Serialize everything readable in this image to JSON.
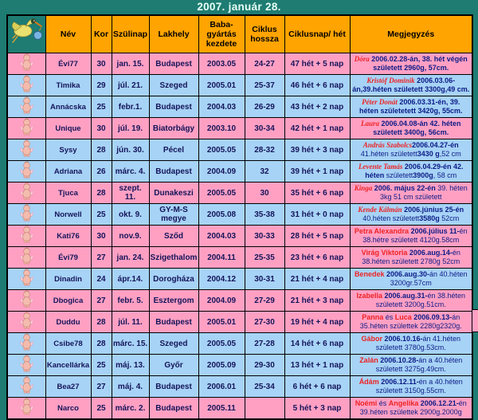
{
  "title": "2007. január 28.",
  "colors": {
    "teal": "#1E7C72",
    "header_orange": "#FFA400",
    "girl_pink": "#FFA0C3",
    "boy_blue": "#A7D3F6",
    "name_red": "#EE2222",
    "note_navy": "#0B1B86",
    "cell_text": "#14145A",
    "title_text": "#E8FFF6"
  },
  "icons": {
    "stork": "stork-with-bundle-icon",
    "cherub": "cherub-baby-icon"
  },
  "table": {
    "columns": [
      "Név",
      "Kor",
      "Szülinap",
      "Lakhely",
      "Baba-gyártás kezdete",
      "Ciklus hossza",
      "Ciklusnap/ hét",
      "Megjegyzés"
    ],
    "rows": [
      {
        "gender": "girl",
        "nev": "Évi77",
        "kor": "30",
        "szulinap": "jan. 15.",
        "lakhely": "Budapest",
        "baba": "2003.05",
        "ciklus": "24-27",
        "ciklusnap": "47 hét + 5 nap",
        "megjegyzes": [
          {
            "t": "Dóra",
            "s": "ni"
          },
          {
            "t": " 2006.02.28-án, 38. hét végén született 2960g, 57cm.",
            "s": "d"
          }
        ]
      },
      {
        "gender": "boy",
        "nev": "Timika",
        "kor": "29",
        "szulinap": "júl. 21.",
        "lakhely": "Szeged",
        "baba": "2005.01",
        "ciklus": "25-37",
        "ciklusnap": "46 hét + 6 nap",
        "megjegyzes": [
          {
            "t": "Kristóf Dominik",
            "s": "ni"
          },
          {
            "t": " 2006.03.06-án,39.héten született 3300g,49 cm.",
            "s": "d"
          }
        ]
      },
      {
        "gender": "boy",
        "nev": "Annácska",
        "kor": "25",
        "szulinap": "febr.1.",
        "lakhely": "Budapest",
        "baba": "2004.03",
        "ciklus": "26-29",
        "ciklusnap": "43 hét + 2 nap",
        "megjegyzes": [
          {
            "t": "Péter Donát",
            "s": "ni"
          },
          {
            "t": " 2006.03.31-én, 39. héten születetett 3420g, 55cm.",
            "s": "d"
          }
        ]
      },
      {
        "gender": "girl",
        "nev": "Unique",
        "kor": "30",
        "szulinap": "júl. 19.",
        "lakhely": "Biatorbágy",
        "baba": "2003.10",
        "ciklus": "30-34",
        "ciklusnap": "42 hét + 1 nap",
        "megjegyzes": [
          {
            "t": "Laura",
            "s": "ni"
          },
          {
            "t": " 2006.04.08-án 42. héten született 3400g, 56cm.",
            "s": "d"
          }
        ]
      },
      {
        "gender": "boy",
        "nev": "Sysy",
        "kor": "28",
        "szulinap": "jún. 30.",
        "lakhely": "Pécel",
        "baba": "2005.05",
        "ciklus": "28-32",
        "ciklusnap": "39 hét + 3 nap",
        "megjegyzes": [
          {
            "t": "András Szabolcs",
            "s": "ni"
          },
          {
            "t": "2006.04.27-én",
            "s": "d"
          },
          {
            "t": " 41.héten született",
            "s": "p"
          },
          {
            "t": "3430 g",
            "s": "d"
          },
          {
            "t": ",52 cm",
            "s": "p"
          }
        ]
      },
      {
        "gender": "boy",
        "nev": "Adriana",
        "kor": "26",
        "szulinap": "márc. 4.",
        "lakhely": "Budapest",
        "baba": "2004.09",
        "ciklus": "32",
        "ciklusnap": "39 hét + 1 nap",
        "megjegyzes": [
          {
            "t": "Levente Tamás",
            "s": "ni"
          },
          {
            "t": " 2006.04.29-én 42. héten",
            "s": "d"
          },
          {
            "t": " született",
            "s": "p"
          },
          {
            "t": "3900g",
            "s": "d"
          },
          {
            "t": ", 58 cm",
            "s": "p"
          }
        ]
      },
      {
        "gender": "girl",
        "nev": "Tjuca",
        "kor": "28",
        "szulinap": "szept. 11.",
        "lakhely": "Dunakeszi",
        "baba": "2005.05",
        "ciklus": "30",
        "ciklusnap": "35 hét + 6 nap",
        "megjegyzes": [
          {
            "t": "Kinga",
            "s": "ni"
          },
          {
            "t": " 2006. május 22-én",
            "s": "d"
          },
          {
            "t": " 39. héten 3kg 51 cm született",
            "s": "p"
          }
        ]
      },
      {
        "gender": "boy",
        "nev": "Norwell",
        "kor": "25",
        "szulinap": "okt. 9.",
        "lakhely": "GY-M-S megye",
        "baba": "2005.08",
        "ciklus": "35-38",
        "ciklusnap": "31 hét + 0 nap",
        "megjegyzes": [
          {
            "t": "Kende Kálmán",
            "s": "ni"
          },
          {
            "t": " 2006.június 25-én",
            "s": "d"
          },
          {
            "t": " 40.héten született",
            "s": "p"
          },
          {
            "t": "3580g",
            "s": "d"
          },
          {
            "t": " 52cm",
            "s": "p"
          }
        ]
      },
      {
        "gender": "girl",
        "nev": "Kati76",
        "kor": "30",
        "szulinap": "nov.9.",
        "lakhely": "Sződ",
        "baba": "2004.03",
        "ciklus": "30-33",
        "ciklusnap": "28 hét + 5 nap",
        "megjegyzes": [
          {
            "t": "Petra Alexandra",
            "s": "n"
          },
          {
            "t": " 2006.július 11-",
            "s": "d"
          },
          {
            "t": "én 38.hétre született 4120g.58cm",
            "s": "p"
          }
        ]
      },
      {
        "gender": "girl",
        "nev": "Évi79",
        "kor": "27",
        "szulinap": "jan. 24.",
        "lakhely": "Szigethalom",
        "baba": "2004.11",
        "ciklus": "25-35",
        "ciklusnap": "23 hét + 6 nap",
        "megjegyzes": [
          {
            "t": "Virág Viktoria",
            "s": "n"
          },
          {
            "t": " 2006.aug.14-",
            "s": "d"
          },
          {
            "t": "én 38.héten született 2780g 52cm",
            "s": "p"
          }
        ]
      },
      {
        "gender": "boy",
        "nev": "Dinadin",
        "kor": "24",
        "szulinap": "ápr.14.",
        "lakhely": "Dorogháza",
        "baba": "2004.12",
        "ciklus": "30-31",
        "ciklusnap": "21 hét + 4 nap",
        "megjegyzes": [
          {
            "t": "Benedek",
            "s": "n"
          },
          {
            "t": " 2006.aug.30-",
            "s": "d"
          },
          {
            "t": "án 40.héten 3200gr.57cm",
            "s": "p"
          }
        ]
      },
      {
        "gender": "girl",
        "nev": "Dbogica",
        "kor": "27",
        "szulinap": "febr. 5.",
        "lakhely": "Esztergom",
        "baba": "2004.09",
        "ciklus": "27-29",
        "ciklusnap": "21 hét + 3 nap",
        "megjegyzes": [
          {
            "t": "Izabella",
            "s": "n"
          },
          {
            "t": " 2006.aug.31-",
            "s": "d"
          },
          {
            "t": "én 38.héten született 3200g.51cm.",
            "s": "p"
          }
        ]
      },
      {
        "gender": "girl",
        "nev": "Duddu",
        "kor": "28",
        "szulinap": "júl. 11.",
        "lakhely": "Budapest",
        "baba": "2005.01",
        "ciklus": "27-30",
        "ciklusnap": "19 hét + 4 nap",
        "megjegyzes": [
          {
            "t": "Panna",
            "s": "n"
          },
          {
            "t": " és ",
            "s": "p"
          },
          {
            "t": "Luca",
            "s": "n"
          },
          {
            "t": " 2006.09.13-",
            "s": "d"
          },
          {
            "t": "án 35.héten születtek 2280g2320g.",
            "s": "p"
          }
        ]
      },
      {
        "gender": "boy",
        "nev": "Csibe78",
        "kor": "28",
        "szulinap": "márc. 15.",
        "lakhely": "Szeged",
        "baba": "2005.05",
        "ciklus": "27-28",
        "ciklusnap": "14 hét + 6 nap",
        "megjegyzes": [
          {
            "t": "Gábor",
            "s": "n"
          },
          {
            "t": " 2006.10.16-",
            "s": "d"
          },
          {
            "t": "án 41.héten született 3780g.53cm.",
            "s": "p"
          }
        ]
      },
      {
        "gender": "boy",
        "nev": "Kancellárka",
        "kor": "25",
        "szulinap": "máj. 13.",
        "lakhely": "Győr",
        "baba": "2005.09",
        "ciklus": "29-30",
        "ciklusnap": "13 hét + 1 nap",
        "megjegyzes": [
          {
            "t": "Zalán",
            "s": "n"
          },
          {
            "t": " 2006.10.28-",
            "s": "d"
          },
          {
            "t": "án a 40.héten született 3275g.49cm.",
            "s": "p"
          }
        ]
      },
      {
        "gender": "boy",
        "nev": "Bea27",
        "kor": "27",
        "szulinap": "máj. 4.",
        "lakhely": "Budapest",
        "baba": "2006.01",
        "ciklus": "25-34",
        "ciklusnap": "6 hét + 6 nap",
        "megjegyzes": [
          {
            "t": "Ádám",
            "s": "n"
          },
          {
            "t": " 2006.12.11-",
            "s": "d"
          },
          {
            "t": "én a 40.héten született 3150g.55cm.",
            "s": "p"
          }
        ]
      },
      {
        "gender": "girl",
        "nev": "Narco",
        "kor": "25",
        "szulinap": "márc. 2.",
        "lakhely": "Budapest",
        "baba": "2005.11",
        "ciklus": "",
        "ciklusnap": "5 hét + 3 nap",
        "megjegyzes": [
          {
            "t": "Noémi",
            "s": "n"
          },
          {
            "t": " és ",
            "s": "p"
          },
          {
            "t": "Angelika",
            "s": "n"
          },
          {
            "t": " 2006.12.21-",
            "s": "d"
          },
          {
            "t": "én 39.héten születtek 2900g.2000g",
            "s": "p"
          }
        ]
      }
    ]
  }
}
